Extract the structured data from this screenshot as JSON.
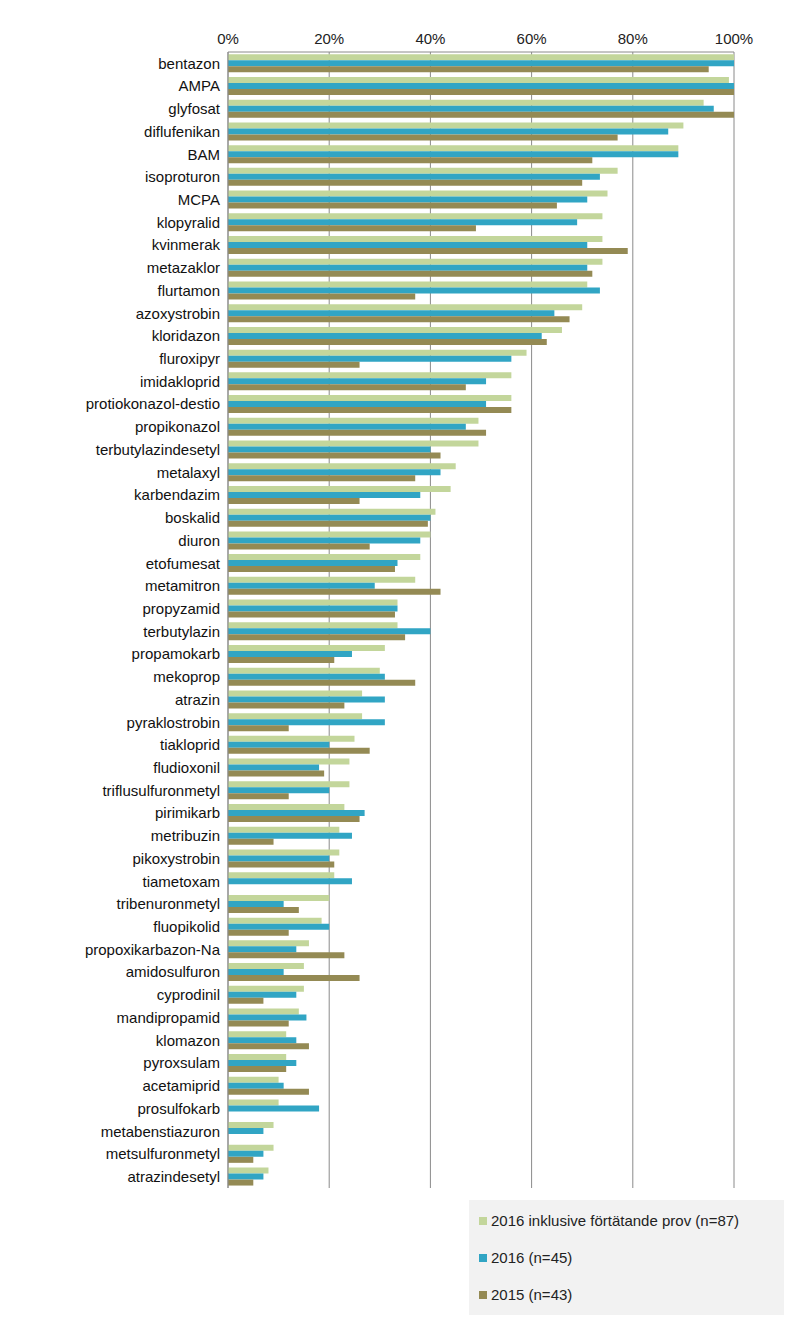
{
  "chart_data": {
    "type": "bar",
    "orientation": "horizontal",
    "grid": true,
    "legend": "lower right",
    "categories": [
      "bentazon",
      "AMPA",
      "glyfosat",
      "diflufenikan",
      "BAM",
      "isoproturon",
      "MCPA",
      "klopyralid",
      "kvinmerak",
      "metazaklor",
      "flurtamon",
      "azoxystrobin",
      "kloridazon",
      "fluroxipyr",
      "imidakloprid",
      "protiokonazol-destio",
      "propikonazol",
      "terbutylazindesetyl",
      "metalaxyl",
      "karbendazim",
      "boskalid",
      "diuron",
      "etofumesat",
      "metamitron",
      "propyzamid",
      "terbutylazin",
      "propamokarb",
      "mekoprop",
      "atrazin",
      "pyraklostrobin",
      "tiakloprid",
      "fludioxonil",
      "triflusulfuronmetyl",
      "pirimikarb",
      "metribuzin",
      "pikoxystrobin",
      "tiametoxam",
      "tribenuronmetyl",
      "fluopikolid",
      "propoxikarbazon-Na",
      "amidosulfuron",
      "cyprodinil",
      "mandipropamid",
      "klomazon",
      "pyroxsulam",
      "acetamiprid",
      "prosulfokarb",
      "metabenstiazuron",
      "metsulfuronmetyl",
      "atrazindesetyl"
    ],
    "series": [
      {
        "name": "2016 inklusive förtätande prov (n=87)",
        "color": "#c3d69b",
        "values": [
          100,
          99,
          94,
          90,
          89,
          77,
          75,
          74,
          74,
          74,
          71,
          70,
          66,
          59,
          56,
          56,
          49.5,
          49.5,
          45,
          44,
          41,
          40,
          38,
          37,
          33.5,
          33.5,
          31,
          30,
          26.5,
          26.5,
          25,
          24,
          24,
          23,
          22,
          22,
          21,
          20,
          18.5,
          16,
          15,
          15,
          14,
          11.5,
          11.5,
          10,
          10,
          9,
          9,
          8
        ]
      },
      {
        "name": "2016 (n=45)",
        "color": "#31a5c4",
        "values": [
          100,
          100,
          96,
          87,
          89,
          73.5,
          71,
          69,
          71,
          71,
          73.5,
          64.5,
          62,
          56,
          51,
          51,
          47,
          40,
          42,
          38,
          40,
          38,
          33.5,
          29,
          33.5,
          40,
          24.5,
          31,
          31,
          31,
          20,
          18,
          20,
          27,
          24.5,
          20,
          24.5,
          11,
          20,
          13.5,
          11,
          13.5,
          15.5,
          13.5,
          13.5,
          11,
          18,
          7,
          7,
          7
        ]
      },
      {
        "name": "2015 (n=43)",
        "color": "#948a54",
        "values": [
          95,
          100,
          100,
          77,
          72,
          70,
          65,
          49,
          79,
          72,
          37,
          67.5,
          63,
          26,
          47,
          56,
          51,
          42,
          37,
          26,
          39.5,
          28,
          33,
          42,
          33,
          35,
          21,
          37,
          23,
          12,
          28,
          19,
          12,
          26,
          9,
          21,
          0,
          14,
          12,
          23,
          26,
          7,
          12,
          16,
          11.5,
          16,
          0,
          0,
          5,
          5
        ]
      }
    ],
    "xlim": [
      0,
      100
    ],
    "xticks": [
      {
        "value": 0,
        "label": "0%"
      },
      {
        "value": 20,
        "label": "20%"
      },
      {
        "value": 40,
        "label": "40%"
      },
      {
        "value": 60,
        "label": "60%"
      },
      {
        "value": 80,
        "label": "80%"
      },
      {
        "value": 100,
        "label": "100%"
      }
    ]
  }
}
